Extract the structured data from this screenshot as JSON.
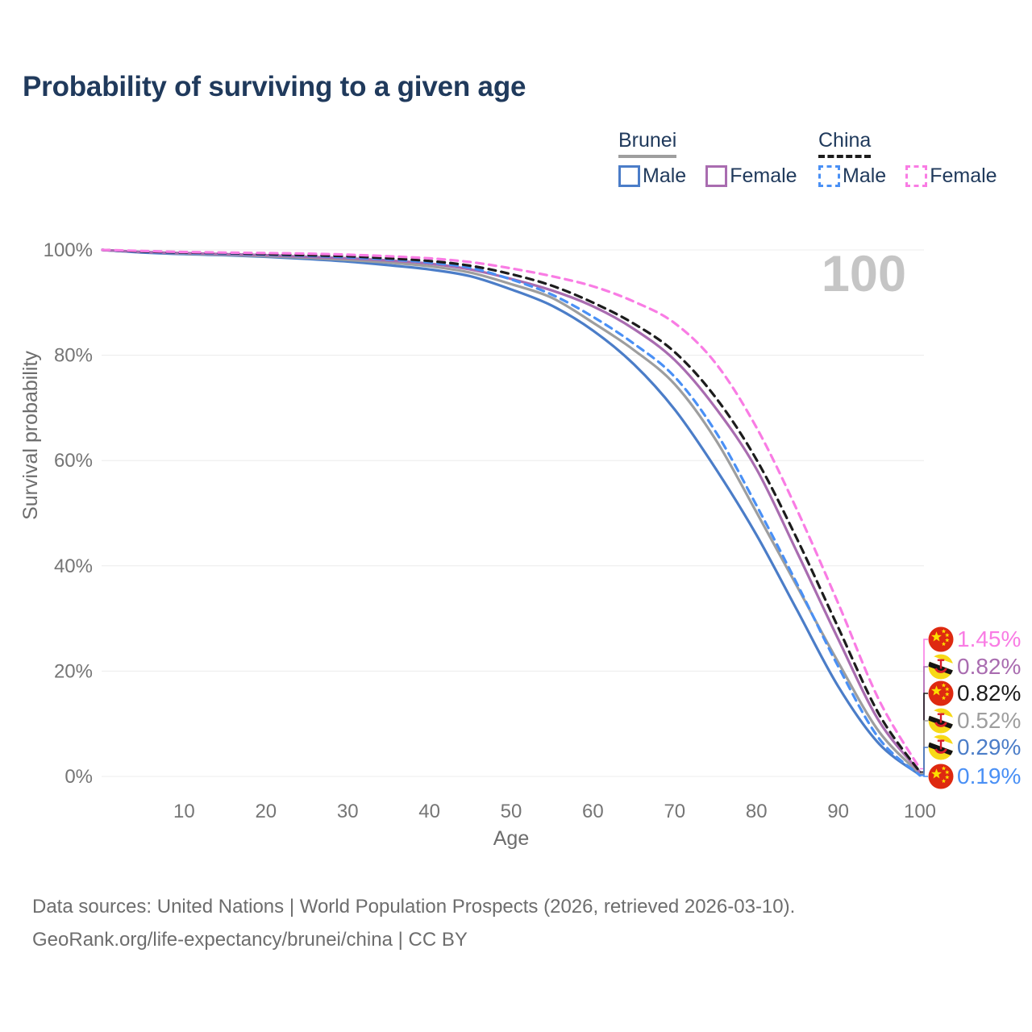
{
  "page": {
    "title": "Probability of surviving to a given age"
  },
  "legend": {
    "groups": [
      {
        "label": "Brunei",
        "underline": "solid",
        "underline_color": "#9e9e9e",
        "items": [
          {
            "label": "Male",
            "color": "#4b7dc8",
            "dash": false
          },
          {
            "label": "Female",
            "color": "#a96cb0",
            "dash": false
          }
        ]
      },
      {
        "label": "China",
        "underline": "dashed",
        "underline_color": "#1c1c1c",
        "items": [
          {
            "label": "Male",
            "color": "#4a90f5",
            "dash": true
          },
          {
            "label": "Female",
            "color": "#f97ce4",
            "dash": true
          }
        ]
      }
    ]
  },
  "chart_data": {
    "type": "line",
    "title": "Probability of surviving to a given age",
    "xlabel": "Age",
    "ylabel": "Survival probability",
    "xlim": [
      0,
      100
    ],
    "ylim": [
      0,
      100
    ],
    "grid": "horizontal",
    "watermark": "100",
    "x_ticks": [
      10,
      20,
      30,
      40,
      50,
      60,
      70,
      80,
      90,
      100
    ],
    "y_tick_labels": [
      "0%",
      "20%",
      "40%",
      "60%",
      "80%",
      "100%"
    ],
    "x": [
      0,
      5,
      10,
      15,
      20,
      25,
      30,
      35,
      40,
      45,
      50,
      55,
      60,
      65,
      70,
      75,
      80,
      85,
      90,
      95,
      100
    ],
    "series": [
      {
        "name": "Brunei Male",
        "country": "Brunei",
        "sex": "Male",
        "color": "#4b7dc8",
        "dash": "solid",
        "flag": "brunei",
        "end_label": "0.29%",
        "values": [
          100,
          99.5,
          99.2,
          99.0,
          98.7,
          98.3,
          97.8,
          97.1,
          96.3,
          95.0,
          92.5,
          89.4,
          84.7,
          78.3,
          69.7,
          58.5,
          45.9,
          31.5,
          17.1,
          6.2,
          0.29
        ]
      },
      {
        "name": "Brunei Total",
        "country": "Brunei",
        "sex": "Both",
        "color": "#9e9e9e",
        "dash": "solid",
        "flag": "brunei",
        "end_label": "0.52%",
        "values": [
          100,
          99.6,
          99.3,
          99.1,
          98.8,
          98.5,
          98.1,
          97.6,
          96.9,
          95.7,
          93.5,
          90.9,
          86.2,
          81.0,
          74.5,
          64.0,
          50.2,
          36.0,
          21.7,
          8.5,
          0.52
        ]
      },
      {
        "name": "Brunei Female",
        "country": "Brunei",
        "sex": "Female",
        "color": "#a96cb0",
        "dash": "solid",
        "flag": "brunei",
        "end_label": "0.82%",
        "values": [
          100,
          99.6,
          99.4,
          99.2,
          99.0,
          98.7,
          98.4,
          98.0,
          97.4,
          96.3,
          94.5,
          92.3,
          89.3,
          85.0,
          79.1,
          70.0,
          58.4,
          42.5,
          26.1,
          10.5,
          0.82
        ]
      },
      {
        "name": "China Male",
        "country": "China",
        "sex": "Male",
        "color": "#4a90f5",
        "dash": "dashed",
        "flag": "china",
        "end_label": "0.19%",
        "values": [
          100,
          99.6,
          99.4,
          99.3,
          99.1,
          98.9,
          98.6,
          98.2,
          97.6,
          96.6,
          94.4,
          91.5,
          87.3,
          82.2,
          75.9,
          65.5,
          51.5,
          36.5,
          20.9,
          7.2,
          0.19
        ]
      },
      {
        "name": "China Total",
        "country": "China",
        "sex": "Both",
        "color": "#1c1c1c",
        "dash": "dashed",
        "flag": "china",
        "end_label": "0.82%",
        "values": [
          100,
          99.7,
          99.5,
          99.4,
          99.2,
          99.0,
          98.8,
          98.4,
          97.9,
          97.0,
          95.4,
          93.2,
          90.0,
          86.0,
          80.6,
          72.0,
          60.2,
          45.0,
          28.3,
          11.8,
          0.82
        ]
      },
      {
        "name": "China Female",
        "country": "China",
        "sex": "Female",
        "color": "#f97ce4",
        "dash": "dashed",
        "flag": "china",
        "end_label": "1.45%",
        "values": [
          100,
          99.8,
          99.6,
          99.5,
          99.4,
          99.3,
          99.1,
          98.8,
          98.4,
          97.7,
          96.5,
          95.0,
          93.1,
          90.2,
          86.1,
          78.5,
          66.3,
          50.5,
          32.9,
          14.5,
          1.45
        ]
      }
    ],
    "flag_colors": {
      "china_red": "#de2910",
      "china_star": "#fcdf00",
      "brunei_yellow": "#f7d917",
      "brunei_white": "#ffffff",
      "brunei_black": "#141414",
      "brunei_crest": "#d81f2a"
    }
  },
  "footer": {
    "line1": "Data sources: United Nations | World Population Prospects (2026, retrieved 2026-03-10).",
    "line2": "GeoRank.org/life-expectancy/brunei/china | CC BY"
  }
}
